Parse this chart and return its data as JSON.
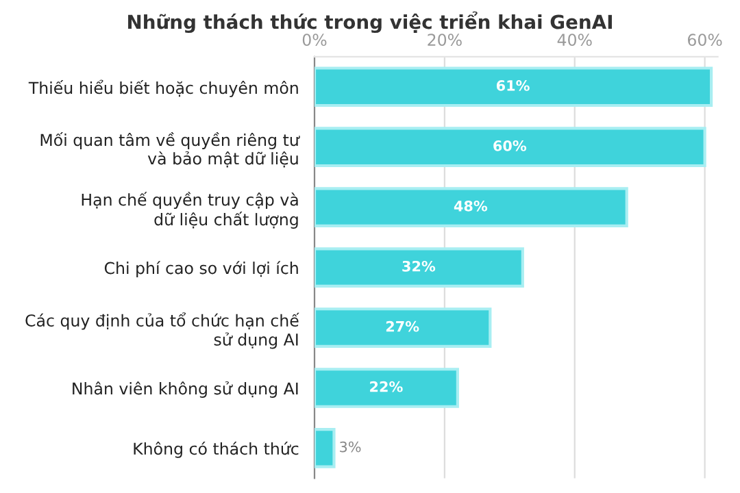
{
  "chart_data": {
    "type": "bar",
    "orientation": "horizontal",
    "title": "Những thách thức trong việc triển khai GenAI",
    "categories": [
      "Thiếu hiểu biết hoặc chuyên môn",
      "Mối quan tâm về quyền riêng tư\nvà bảo mật dữ liệu",
      "Hạn chế quyền truy cập và\ndữ liệu chất lượng",
      "Chi phí cao so với lợi ích",
      "Các quy định của tổ chức hạn chế\nsử dụng AI",
      "Nhân viên không sử dụng AI",
      "Không có thách thức"
    ],
    "values": [
      61,
      60,
      48,
      32,
      27,
      22,
      3
    ],
    "color": "#3fd3db",
    "xlim": [
      0,
      62
    ],
    "xticks": [
      {
        "value": 0,
        "label": "0%"
      },
      {
        "value": 20,
        "label": "20%"
      },
      {
        "value": 40,
        "label": "40%"
      },
      {
        "value": 60,
        "label": "60%"
      }
    ],
    "grid": "x",
    "value_labels": [
      "61%",
      "60%",
      "48%",
      "32%",
      "27%",
      "22%",
      "3%"
    ]
  }
}
